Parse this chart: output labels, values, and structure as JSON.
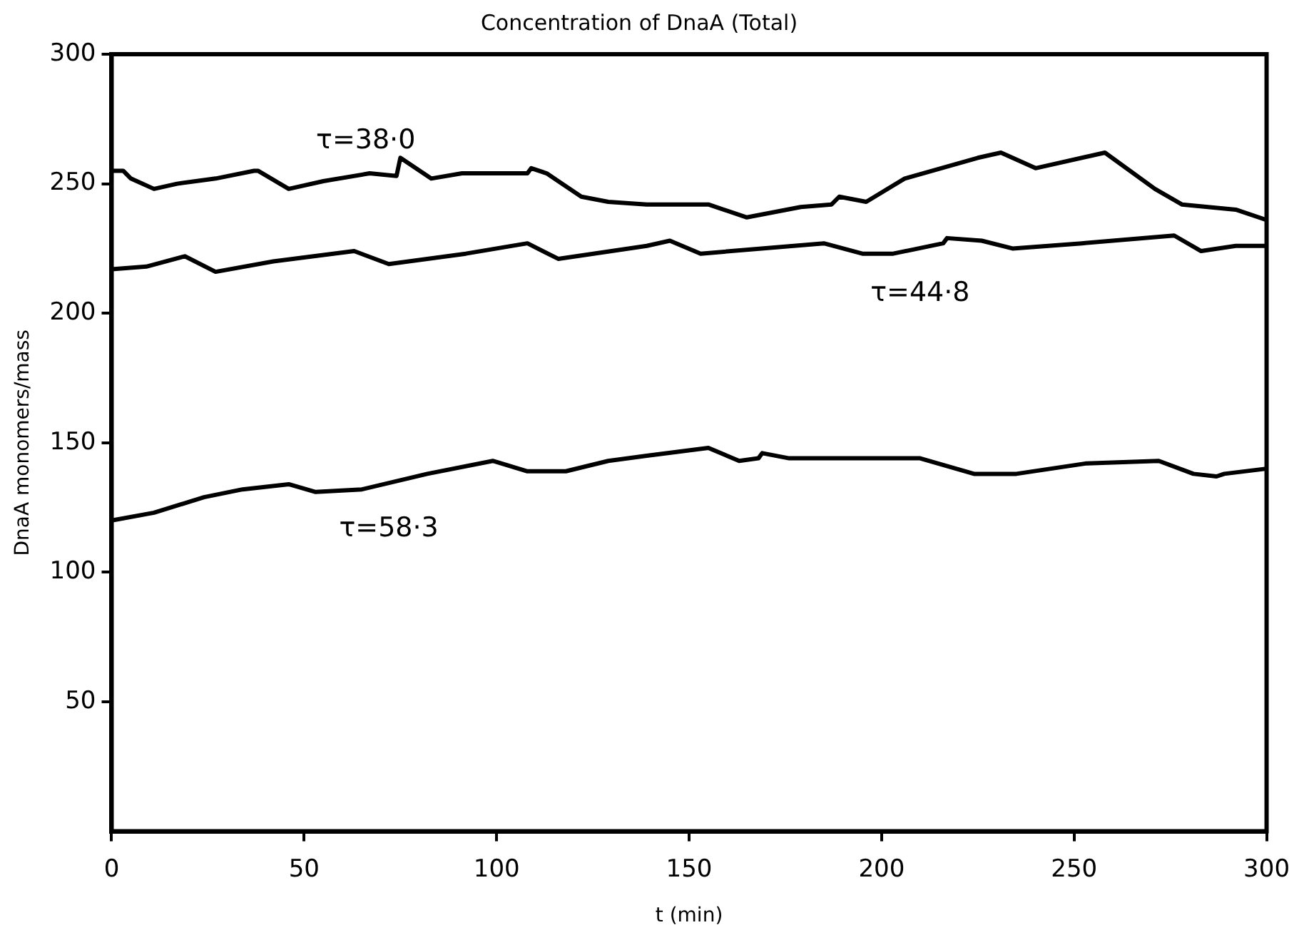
{
  "chart_data": {
    "type": "line",
    "title": "Concentration of DnaA (Total)",
    "xlabel": "t (min)",
    "ylabel": "DnaA monomers/mass",
    "xlim": [
      0,
      300
    ],
    "xticks": [
      0,
      50,
      100,
      150,
      200,
      250,
      300
    ],
    "ylim": [
      0,
      300
    ],
    "yticks": [
      50,
      100,
      150,
      200,
      250,
      300
    ],
    "grid": false,
    "legend": false,
    "marker": "none",
    "line_style": "solid",
    "series": [
      {
        "name": "τ=38·0",
        "color": "#000000",
        "x": [
          0,
          3,
          5,
          11,
          17,
          27,
          37,
          38,
          46,
          55,
          67,
          74,
          75,
          83,
          91,
          108,
          109,
          113,
          122,
          129,
          139,
          155,
          165,
          179,
          187,
          189,
          196,
          206,
          225,
          231,
          240,
          258,
          271,
          278,
          292,
          300
        ],
        "values": [
          255,
          255,
          252,
          248,
          250,
          252,
          255,
          255,
          248,
          251,
          254,
          253,
          260,
          252,
          254,
          254,
          256,
          254,
          245,
          243,
          242,
          242,
          237,
          241,
          242,
          245,
          243,
          252,
          260,
          262,
          256,
          262,
          248,
          242,
          240,
          236
        ]
      },
      {
        "name": "τ=44·8",
        "color": "#000000",
        "x": [
          0,
          9,
          19,
          27,
          42,
          63,
          72,
          92,
          108,
          116,
          139,
          145,
          153,
          185,
          195,
          203,
          216,
          217,
          226,
          234,
          252,
          276,
          283,
          292,
          300
        ],
        "values": [
          217,
          218,
          222,
          216,
          220,
          224,
          219,
          223,
          227,
          221,
          226,
          228,
          223,
          227,
          223,
          223,
          227,
          229,
          228,
          225,
          227,
          230,
          224,
          226,
          226
        ]
      },
      {
        "name": "τ=58·3",
        "color": "#000000",
        "x": [
          0,
          11,
          24,
          34,
          46,
          53,
          65,
          82,
          99,
          108,
          118,
          129,
          139,
          155,
          163,
          168,
          169,
          176,
          210,
          224,
          235,
          253,
          272,
          281,
          287,
          289,
          300
        ],
        "values": [
          120,
          123,
          129,
          132,
          134,
          131,
          132,
          138,
          143,
          139,
          139,
          143,
          145,
          148,
          143,
          144,
          146,
          144,
          144,
          138,
          138,
          142,
          143,
          138,
          137,
          138,
          140
        ]
      }
    ]
  }
}
